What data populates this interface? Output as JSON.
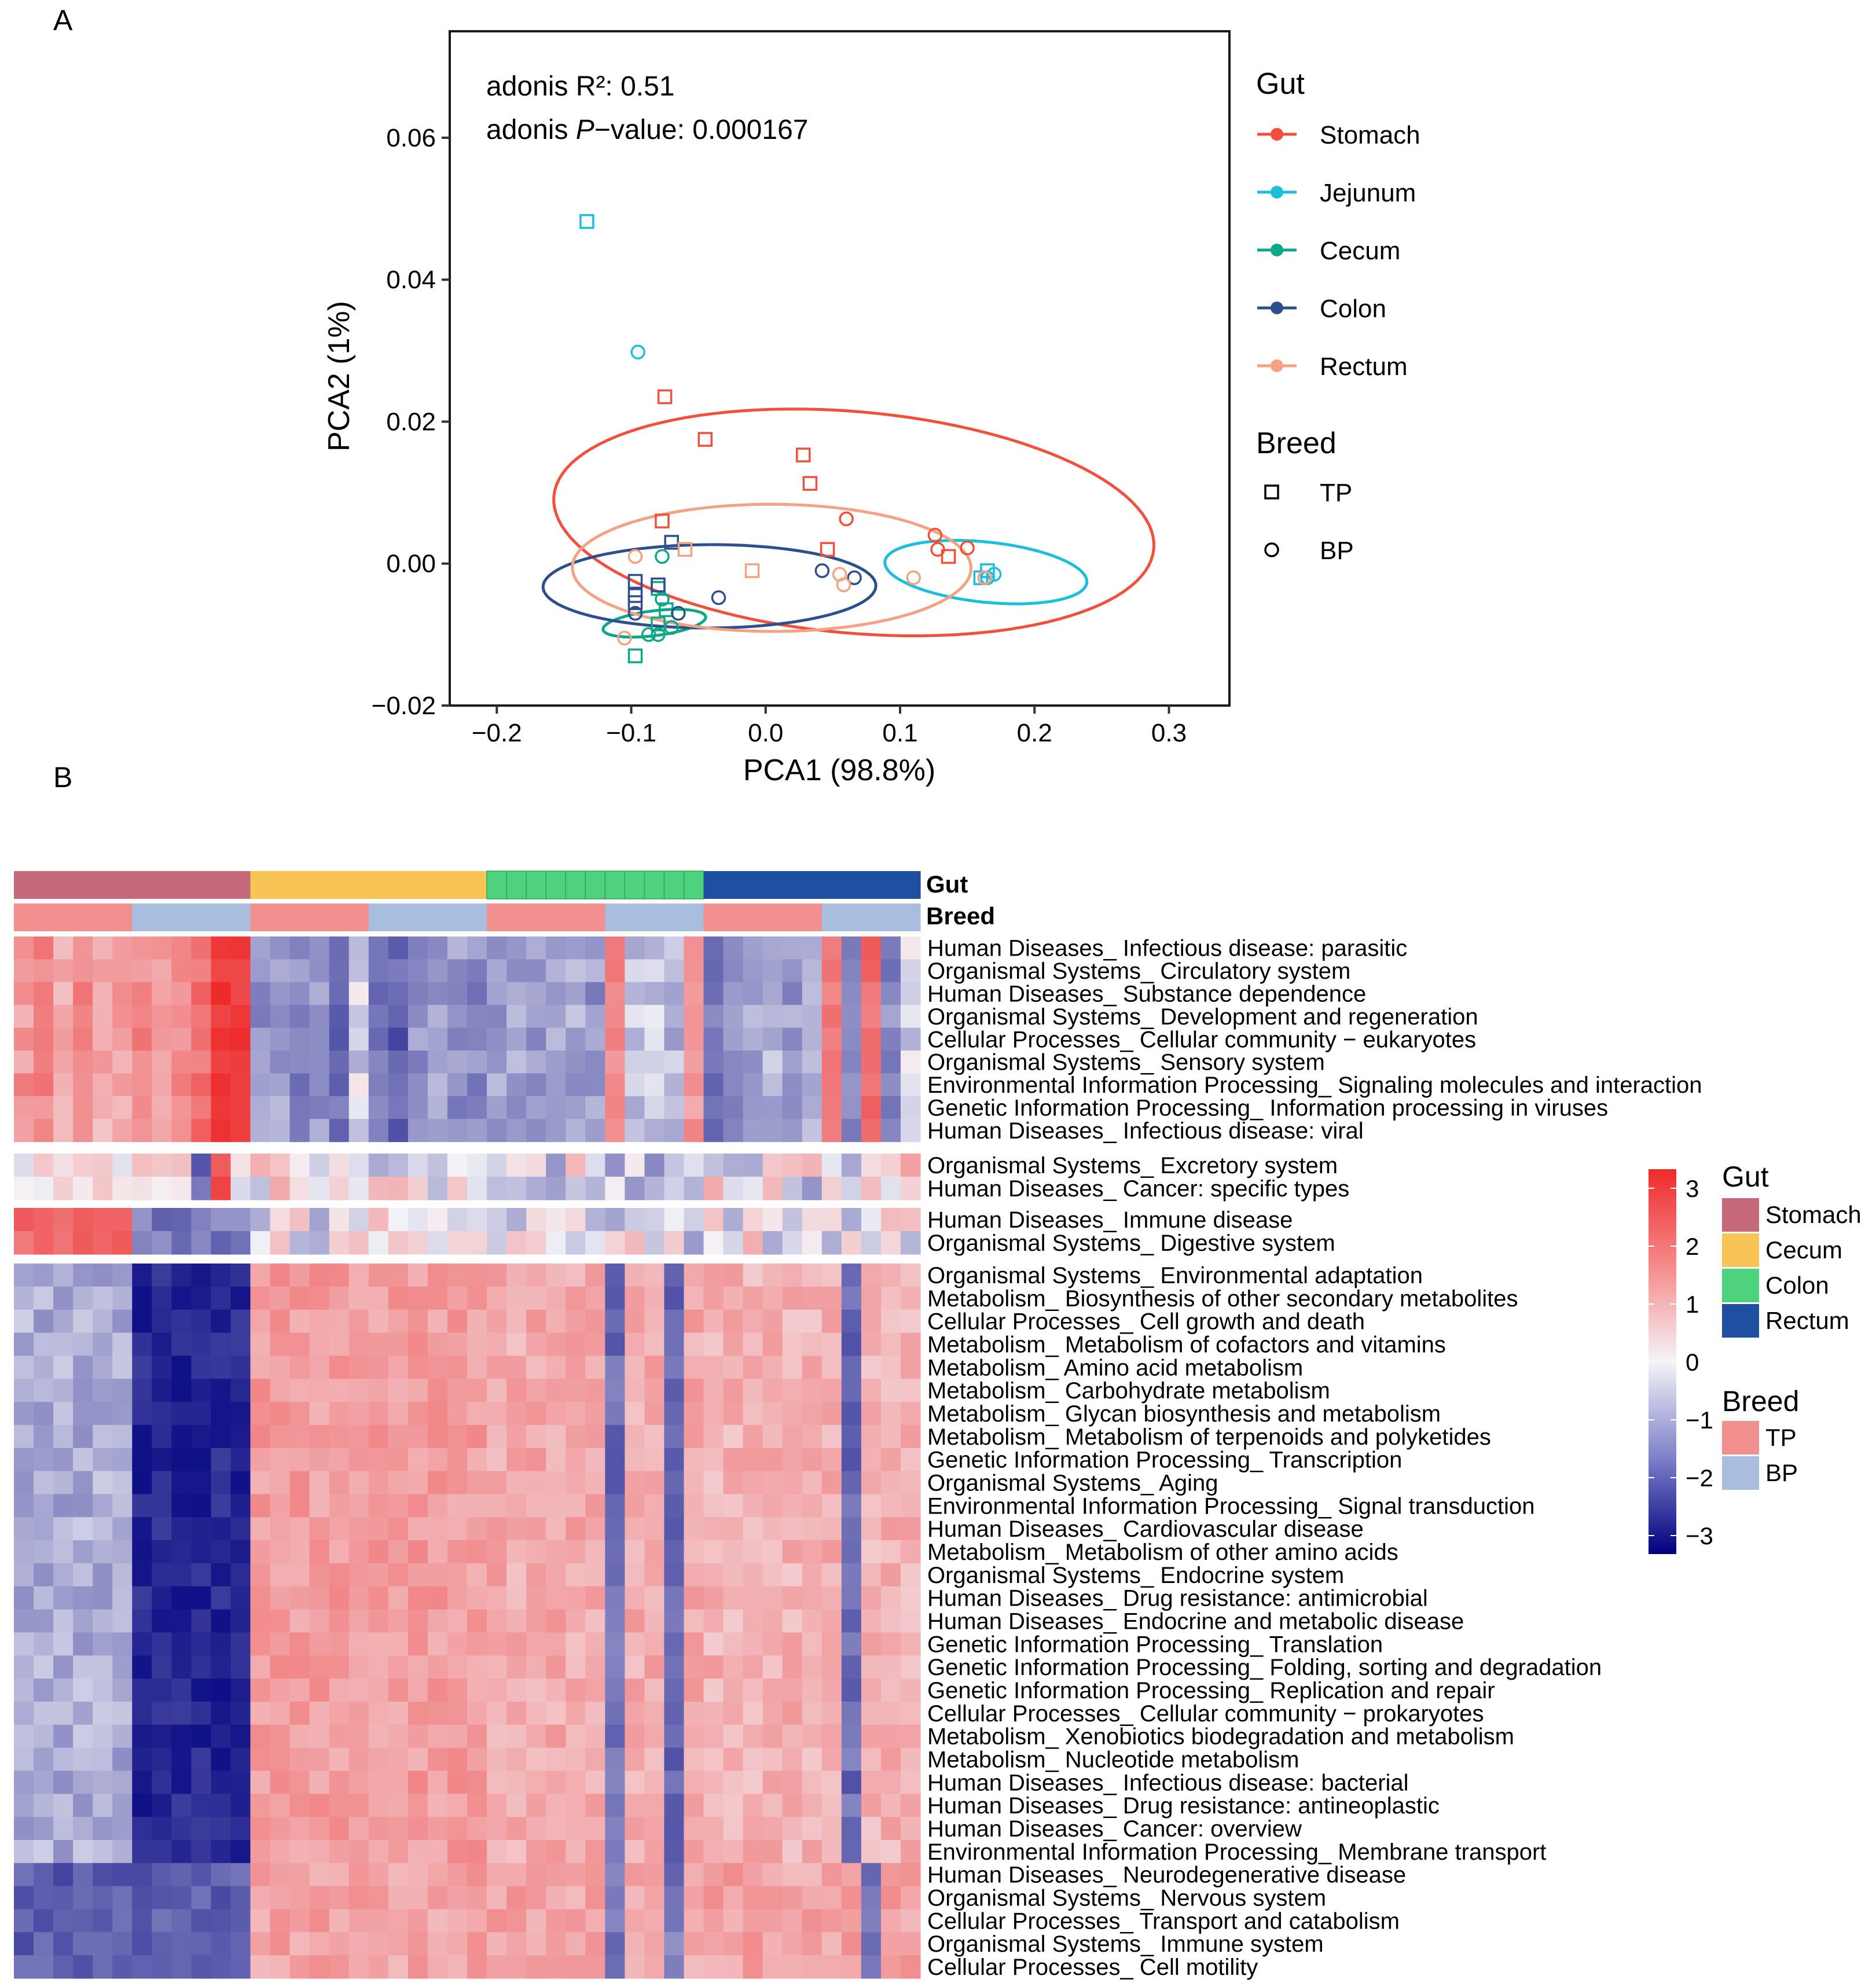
{
  "panels": {
    "a": "A",
    "b": "B"
  },
  "colors": {
    "Stomach": "#F0503C",
    "Jejunum": "#1CBFD9",
    "Cecum": "#0DA888",
    "Colon": "#2E4F8C",
    "Rectum": "#F4A283",
    "hm_Stomach": "#C6697B",
    "hm_Cecum": "#F9C456",
    "hm_Colon": "#4FD27E",
    "hm_Rectum": "#1F4FA0",
    "hm_TP": "#F2908F",
    "hm_BP": "#A9BEDF"
  },
  "chart_data": [
    {
      "type": "scatter",
      "xlabel": "PCA1 (98.8%)",
      "ylabel": "PCA2 (1%)",
      "xlim": [
        -0.235,
        0.345
      ],
      "ylim": [
        -0.02,
        0.075
      ],
      "x_ticks": [
        "−0.2",
        "−0.1",
        "0.0",
        "0.1",
        "0.2",
        "0.3"
      ],
      "x_tick_values": [
        -0.2,
        -0.1,
        0.0,
        0.1,
        0.2,
        0.3
      ],
      "y_ticks": [
        "−0.02",
        "0.00",
        "0.02",
        "0.04",
        "0.06"
      ],
      "y_tick_values": [
        -0.02,
        0.0,
        0.02,
        0.04,
        0.06
      ],
      "annotation_line1": "adonis R²: 0.51",
      "annotation_prefix": "adonis ",
      "annotation_italic": "P",
      "annotation_suffix": "−value: 0.000167",
      "legend": {
        "gut_title": "Gut",
        "gut_items": [
          "Stomach",
          "Jejunum",
          "Cecum",
          "Colon",
          "Rectum"
        ],
        "breed_title": "Breed",
        "breed_items": [
          "TP",
          "BP"
        ]
      },
      "points": [
        {
          "x": -0.075,
          "y": 0.0235,
          "g": "Stomach",
          "b": "TP"
        },
        {
          "x": -0.045,
          "y": 0.0175,
          "g": "Stomach",
          "b": "TP"
        },
        {
          "x": 0.028,
          "y": 0.0153,
          "g": "Stomach",
          "b": "TP"
        },
        {
          "x": 0.033,
          "y": 0.0113,
          "g": "Stomach",
          "b": "TP"
        },
        {
          "x": -0.077,
          "y": 0.006,
          "g": "Stomach",
          "b": "TP"
        },
        {
          "x": 0.046,
          "y": 0.002,
          "g": "Stomach",
          "b": "TP"
        },
        {
          "x": 0.06,
          "y": 0.0063,
          "g": "Stomach",
          "b": "BP"
        },
        {
          "x": 0.126,
          "y": 0.004,
          "g": "Stomach",
          "b": "BP"
        },
        {
          "x": 0.128,
          "y": 0.002,
          "g": "Stomach",
          "b": "BP"
        },
        {
          "x": 0.15,
          "y": 0.0022,
          "g": "Stomach",
          "b": "BP"
        },
        {
          "x": 0.136,
          "y": 0.001,
          "g": "Stomach",
          "b": "TP"
        },
        {
          "x": -0.133,
          "y": 0.0482,
          "g": "Jejunum",
          "b": "TP"
        },
        {
          "x": -0.095,
          "y": 0.0298,
          "g": "Jejunum",
          "b": "BP"
        },
        {
          "x": 0.16,
          "y": -0.002,
          "g": "Jejunum",
          "b": "TP"
        },
        {
          "x": 0.165,
          "y": -0.001,
          "g": "Jejunum",
          "b": "TP"
        },
        {
          "x": 0.17,
          "y": -0.0015,
          "g": "Jejunum",
          "b": "BP"
        },
        {
          "x": 0.165,
          "y": -0.002,
          "g": "Jejunum",
          "b": "BP"
        },
        {
          "x": -0.077,
          "y": 0.001,
          "g": "Cecum",
          "b": "BP"
        },
        {
          "x": -0.08,
          "y": -0.0035,
          "g": "Cecum",
          "b": "TP"
        },
        {
          "x": -0.077,
          "y": -0.005,
          "g": "Cecum",
          "b": "BP"
        },
        {
          "x": -0.074,
          "y": -0.0065,
          "g": "Cecum",
          "b": "TP"
        },
        {
          "x": -0.08,
          "y": -0.0085,
          "g": "Cecum",
          "b": "TP"
        },
        {
          "x": -0.08,
          "y": -0.01,
          "g": "Cecum",
          "b": "BP"
        },
        {
          "x": -0.087,
          "y": -0.01,
          "g": "Cecum",
          "b": "BP"
        },
        {
          "x": -0.097,
          "y": -0.013,
          "g": "Cecum",
          "b": "TP"
        },
        {
          "x": -0.07,
          "y": -0.009,
          "g": "Cecum",
          "b": "BP"
        },
        {
          "x": -0.097,
          "y": -0.0025,
          "g": "Colon",
          "b": "TP"
        },
        {
          "x": -0.097,
          "y": -0.0045,
          "g": "Colon",
          "b": "TP"
        },
        {
          "x": -0.097,
          "y": -0.0055,
          "g": "Colon",
          "b": "TP"
        },
        {
          "x": -0.08,
          "y": -0.003,
          "g": "Colon",
          "b": "TP"
        },
        {
          "x": -0.07,
          "y": 0.003,
          "g": "Colon",
          "b": "TP"
        },
        {
          "x": -0.097,
          "y": -0.007,
          "g": "Colon",
          "b": "BP"
        },
        {
          "x": -0.065,
          "y": -0.007,
          "g": "Colon",
          "b": "BP"
        },
        {
          "x": -0.035,
          "y": -0.0048,
          "g": "Colon",
          "b": "BP"
        },
        {
          "x": 0.042,
          "y": -0.001,
          "g": "Colon",
          "b": "BP"
        },
        {
          "x": 0.066,
          "y": -0.002,
          "g": "Colon",
          "b": "BP"
        },
        {
          "x": -0.097,
          "y": 0.001,
          "g": "Rectum",
          "b": "BP"
        },
        {
          "x": -0.06,
          "y": 0.002,
          "g": "Rectum",
          "b": "TP"
        },
        {
          "x": -0.01,
          "y": -0.001,
          "g": "Rectum",
          "b": "TP"
        },
        {
          "x": 0.055,
          "y": -0.0015,
          "g": "Rectum",
          "b": "BP"
        },
        {
          "x": 0.058,
          "y": -0.003,
          "g": "Rectum",
          "b": "BP"
        },
        {
          "x": 0.11,
          "y": -0.002,
          "g": "Rectum",
          "b": "BP"
        },
        {
          "x": 0.163,
          "y": -0.002,
          "g": "Rectum",
          "b": "BP"
        },
        {
          "x": -0.105,
          "y": -0.0105,
          "g": "Rectum",
          "b": "BP"
        }
      ],
      "ellipses": [
        {
          "g": "Stomach",
          "cx": 0.0656,
          "cy": 0.0058,
          "rx": 0.224,
          "ry": 0.0156,
          "angle": -0.0878
        },
        {
          "g": "Jejunum",
          "cx": 0.1638,
          "cy": -0.0012,
          "rx": 0.0755,
          "ry": 0.00424,
          "angle": -0.1033
        },
        {
          "g": "Cecum",
          "cx": -0.0828,
          "cy": -0.0084,
          "rx": 0.00924,
          "ry": 0.00728,
          "angle": -1.447
        },
        {
          "g": "Colon",
          "cx": -0.0418,
          "cy": -0.0032,
          "rx": 0.1238,
          "ry": 0.00587,
          "angle": 0.00385
        },
        {
          "g": "Rectum",
          "cx": 0.0045,
          "cy": -0.0006,
          "rx": 0.1483,
          "ry": 0.00896,
          "angle": -0.002
        }
      ]
    },
    {
      "type": "heatmap",
      "row_labels": [
        "Human Diseases_ Infectious disease: parasitic",
        "Organismal Systems_ Circulatory system",
        "Human Diseases_ Substance dependence",
        "Organismal Systems_ Development and regeneration",
        "Cellular Processes_ Cellular community − eukaryotes",
        "Organismal Systems_ Sensory system",
        "Environmental Information Processing_ Signaling molecules and interaction",
        "Genetic Information Processing_ Information processing in viruses",
        "Human Diseases_ Infectious disease: viral",
        "Organismal Systems_ Excretory system",
        "Human Diseases_ Cancer: specific types",
        "Human Diseases_ Immune disease",
        "Organismal Systems_ Digestive system",
        "Organismal Systems_ Environmental adaptation",
        "Metabolism_ Biosynthesis of other secondary metabolites",
        "Cellular Processes_ Cell growth and death",
        "Metabolism_ Metabolism of cofactors and vitamins",
        "Metabolism_ Amino acid metabolism",
        "Metabolism_ Carbohydrate metabolism",
        "Metabolism_ Glycan biosynthesis and metabolism",
        "Metabolism_ Metabolism of terpenoids and polyketides",
        "Genetic Information Processing_ Transcription",
        "Organismal Systems_ Aging",
        "Environmental Information Processing_ Signal transduction",
        "Human Diseases_ Cardiovascular disease",
        "Metabolism_ Metabolism of other amino acids",
        "Organismal Systems_ Endocrine system",
        "Human Diseases_ Drug resistance: antimicrobial",
        "Human Diseases_ Endocrine and metabolic disease",
        "Genetic Information Processing_ Translation",
        "Genetic Information Processing_ Folding, sorting and degradation",
        "Genetic Information Processing_ Replication and repair",
        "Cellular Processes_ Cellular community − prokaryotes",
        "Metabolism_ Xenobiotics biodegradation and metabolism",
        "Metabolism_ Nucleotide metabolism",
        "Human Diseases_ Infectious disease: bacterial",
        "Human Diseases_ Drug resistance: antineoplastic",
        "Human Diseases_ Cancer: overview",
        "Environmental Information Processing_ Membrane transport",
        "Human Diseases_ Neurodegenerative disease",
        "Organismal Systems_ Nervous system",
        "Cellular Processes_ Transport and catabolism",
        "Organismal Systems_ Immune system",
        "Cellular Processes_ Cell motility"
      ],
      "row_groups": [
        9,
        2,
        2,
        31
      ],
      "annotation_labels": {
        "gut": "Gut",
        "breed": "Breed"
      },
      "column_gut": [
        "Stomach",
        "Stomach",
        "Stomach",
        "Stomach",
        "Stomach",
        "Stomach",
        "Stomach",
        "Stomach",
        "Stomach",
        "Stomach",
        "Stomach",
        "Stomach",
        "Cecum",
        "Cecum",
        "Cecum",
        "Cecum",
        "Cecum",
        "Cecum",
        "Cecum",
        "Cecum",
        "Cecum",
        "Cecum",
        "Cecum",
        "Cecum",
        "Colon",
        "Colon",
        "Colon",
        "Colon",
        "Colon",
        "Colon",
        "Colon",
        "Colon",
        "Colon",
        "Colon",
        "Colon",
        "Rectum",
        "Rectum",
        "Rectum",
        "Rectum",
        "Rectum",
        "Rectum",
        "Rectum",
        "Rectum",
        "Rectum",
        "Rectum",
        "Rectum"
      ],
      "column_breed": [
        "TP",
        "TP",
        "TP",
        "TP",
        "TP",
        "TP",
        "BP",
        "BP",
        "BP",
        "BP",
        "BP",
        "BP",
        "TP",
        "TP",
        "TP",
        "TP",
        "TP",
        "TP",
        "BP",
        "BP",
        "BP",
        "BP",
        "BP",
        "BP",
        "TP",
        "TP",
        "TP",
        "TP",
        "TP",
        "TP",
        "BP",
        "BP",
        "BP",
        "BP",
        "BP",
        "TP",
        "TP",
        "TP",
        "TP",
        "TP",
        "TP",
        "BP",
        "BP",
        "BP",
        "BP",
        "BP"
      ],
      "color_scale": {
        "min": -3,
        "max": 3,
        "low": "#00007F",
        "mid": "#F4F4F8",
        "high": "#EE2B2B"
      },
      "scale_ticks": [
        "3",
        "2",
        "1",
        "0",
        "−1",
        "−2",
        "−3"
      ],
      "legend": {
        "gut_title": "Gut",
        "gut_items": [
          "Stomach",
          "Cecum",
          "Colon",
          "Rectum"
        ],
        "breed_title": "Breed",
        "breed_items": [
          "TP",
          "BP"
        ]
      },
      "row_profiles": [
        [
          1.2,
          1.6,
          0.8,
          1.3,
          0.7,
          1.0,
          1.4,
          0.9,
          1.3,
          1.8,
          2.9,
          2.6,
          -0.8,
          -0.6,
          -1.1,
          -0.7,
          -1.5,
          -0.2,
          -1.3,
          -1.6,
          -0.9,
          -0.7,
          -0.8,
          -1.0,
          -0.7,
          -0.8,
          -0.9,
          -0.6,
          -0.7,
          -0.9,
          1.4,
          -0.5,
          -0.3,
          -0.6,
          1.2,
          -1.2,
          -1.0,
          -0.6,
          -0.4,
          -0.8,
          -0.5,
          1.6,
          -0.9,
          1.8,
          -1.0,
          -0.2
        ],
        [
          1.0,
          1.3,
          0.9,
          1.2,
          0.8,
          0.9,
          1.2,
          1.0,
          1.4,
          1.7,
          2.8,
          2.5,
          -0.9,
          -0.7,
          -1.0,
          -0.8,
          -1.3,
          -0.4,
          -1.2,
          -1.4,
          -1.0,
          -0.8,
          -0.9,
          -1.0,
          -0.8,
          -0.7,
          -0.8,
          -0.7,
          -0.6,
          -0.8,
          1.3,
          -0.4,
          -0.3,
          -0.5,
          1.1,
          -1.1,
          -0.9,
          -0.7,
          -0.5,
          -0.8,
          -0.6,
          1.5,
          -0.9,
          1.7,
          -1.0,
          -0.1
        ]
      ]
    }
  ]
}
